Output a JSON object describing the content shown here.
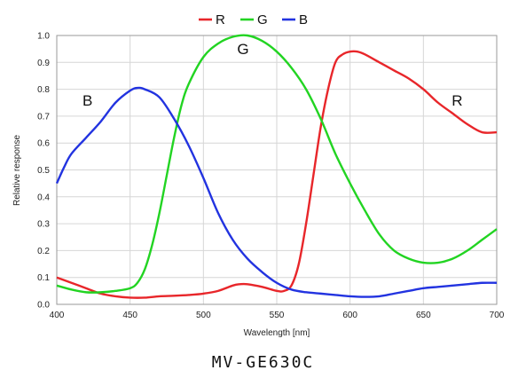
{
  "chart_data": {
    "type": "line",
    "title": "",
    "xlabel": "Wavelength [nm]",
    "ylabel": "Relative response",
    "xlim": [
      400,
      700
    ],
    "ylim": [
      0.0,
      1.0
    ],
    "xticks": [
      400,
      450,
      500,
      550,
      600,
      650,
      700
    ],
    "xtick_labels": [
      "400",
      "450",
      "500",
      "550",
      "600",
      "650",
      "700"
    ],
    "yticks": [
      0.0,
      0.1,
      0.2,
      0.3,
      0.4,
      0.5,
      0.6,
      0.7,
      0.8,
      0.9,
      1.0
    ],
    "ytick_labels": [
      "0.0",
      "0.1",
      "0.2",
      "0.3",
      "0.4",
      "0.5",
      "0.6",
      "0.7",
      "0.8",
      "0.9",
      "1.0"
    ],
    "grid": true,
    "legend": {
      "placement": "top-center"
    },
    "series": [
      {
        "name": "R",
        "color": "#e8262a",
        "annotation": "R",
        "annotation_at": [
          673,
          0.74
        ],
        "points": [
          [
            400,
            0.1
          ],
          [
            410,
            0.08
          ],
          [
            420,
            0.06
          ],
          [
            430,
            0.04
          ],
          [
            440,
            0.03
          ],
          [
            450,
            0.025
          ],
          [
            460,
            0.025
          ],
          [
            470,
            0.03
          ],
          [
            480,
            0.032
          ],
          [
            490,
            0.035
          ],
          [
            500,
            0.04
          ],
          [
            510,
            0.05
          ],
          [
            520,
            0.07
          ],
          [
            525,
            0.075
          ],
          [
            530,
            0.075
          ],
          [
            540,
            0.065
          ],
          [
            550,
            0.05
          ],
          [
            555,
            0.05
          ],
          [
            560,
            0.07
          ],
          [
            565,
            0.15
          ],
          [
            570,
            0.3
          ],
          [
            575,
            0.48
          ],
          [
            580,
            0.66
          ],
          [
            585,
            0.8
          ],
          [
            590,
            0.9
          ],
          [
            595,
            0.93
          ],
          [
            600,
            0.94
          ],
          [
            605,
            0.94
          ],
          [
            610,
            0.93
          ],
          [
            620,
            0.9
          ],
          [
            630,
            0.87
          ],
          [
            640,
            0.84
          ],
          [
            650,
            0.8
          ],
          [
            660,
            0.75
          ],
          [
            670,
            0.71
          ],
          [
            680,
            0.67
          ],
          [
            690,
            0.64
          ],
          [
            700,
            0.64
          ]
        ]
      },
      {
        "name": "G",
        "color": "#22d422",
        "annotation": "G",
        "annotation_at": [
          527,
          0.93
        ],
        "points": [
          [
            400,
            0.07
          ],
          [
            410,
            0.055
          ],
          [
            420,
            0.045
          ],
          [
            430,
            0.045
          ],
          [
            440,
            0.05
          ],
          [
            450,
            0.06
          ],
          [
            455,
            0.08
          ],
          [
            460,
            0.13
          ],
          [
            465,
            0.22
          ],
          [
            470,
            0.34
          ],
          [
            475,
            0.48
          ],
          [
            480,
            0.62
          ],
          [
            485,
            0.74
          ],
          [
            490,
            0.82
          ],
          [
            500,
            0.92
          ],
          [
            510,
            0.97
          ],
          [
            520,
            0.995
          ],
          [
            530,
            1.0
          ],
          [
            540,
            0.98
          ],
          [
            550,
            0.94
          ],
          [
            560,
            0.88
          ],
          [
            570,
            0.8
          ],
          [
            580,
            0.69
          ],
          [
            590,
            0.56
          ],
          [
            600,
            0.45
          ],
          [
            610,
            0.35
          ],
          [
            620,
            0.26
          ],
          [
            630,
            0.2
          ],
          [
            640,
            0.17
          ],
          [
            650,
            0.155
          ],
          [
            660,
            0.155
          ],
          [
            670,
            0.17
          ],
          [
            680,
            0.2
          ],
          [
            690,
            0.24
          ],
          [
            700,
            0.28
          ]
        ]
      },
      {
        "name": "B",
        "color": "#2233e0",
        "annotation": "B",
        "annotation_at": [
          421,
          0.74
        ],
        "points": [
          [
            400,
            0.45
          ],
          [
            405,
            0.51
          ],
          [
            410,
            0.56
          ],
          [
            420,
            0.62
          ],
          [
            430,
            0.68
          ],
          [
            440,
            0.75
          ],
          [
            450,
            0.795
          ],
          [
            455,
            0.805
          ],
          [
            460,
            0.8
          ],
          [
            470,
            0.77
          ],
          [
            480,
            0.69
          ],
          [
            490,
            0.59
          ],
          [
            500,
            0.47
          ],
          [
            510,
            0.34
          ],
          [
            520,
            0.24
          ],
          [
            530,
            0.17
          ],
          [
            540,
            0.12
          ],
          [
            550,
            0.08
          ],
          [
            560,
            0.055
          ],
          [
            570,
            0.045
          ],
          [
            580,
            0.04
          ],
          [
            590,
            0.035
          ],
          [
            600,
            0.03
          ],
          [
            610,
            0.028
          ],
          [
            620,
            0.03
          ],
          [
            630,
            0.04
          ],
          [
            640,
            0.05
          ],
          [
            650,
            0.06
          ],
          [
            660,
            0.065
          ],
          [
            670,
            0.07
          ],
          [
            680,
            0.075
          ],
          [
            690,
            0.08
          ],
          [
            700,
            0.08
          ]
        ]
      }
    ]
  },
  "caption": "MV-GE630C"
}
